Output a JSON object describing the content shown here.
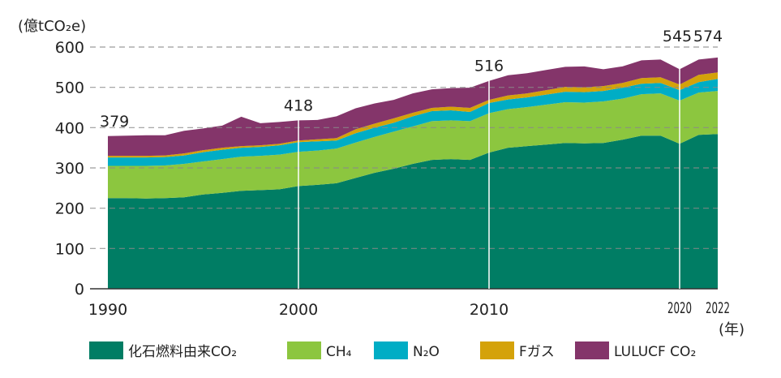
{
  "chart_data": {
    "type": "area",
    "stacked": true,
    "title": "",
    "ylabel": "(億tCO₂e)",
    "xlabel": "(年)",
    "ylim": [
      0,
      600
    ],
    "yticks": [
      0,
      100,
      200,
      300,
      400,
      500,
      600
    ],
    "xticks": [
      {
        "year": 1990,
        "label": "1990",
        "small": false
      },
      {
        "year": 2000,
        "label": "2000",
        "small": false
      },
      {
        "year": 2010,
        "label": "2010",
        "small": false
      },
      {
        "year": 2020,
        "label": "2020",
        "small": true
      },
      {
        "year": 2022,
        "label": "2022",
        "small": true
      }
    ],
    "grid": "horizontal dashed",
    "legend_position": "bottom",
    "x": [
      1990,
      1991,
      1992,
      1993,
      1994,
      1995,
      1996,
      1997,
      1998,
      1999,
      2000,
      2001,
      2002,
      2003,
      2004,
      2005,
      2006,
      2007,
      2008,
      2009,
      2010,
      2011,
      2012,
      2013,
      2014,
      2015,
      2016,
      2017,
      2018,
      2019,
      2020,
      2021,
      2022
    ],
    "series": [
      {
        "name": "化石燃料由来CO₂",
        "color": "#007d64",
        "values": [
          225,
          225,
          224,
          225,
          227,
          234,
          238,
          243,
          245,
          247,
          255,
          258,
          262,
          275,
          288,
          298,
          310,
          320,
          322,
          320,
          338,
          350,
          354,
          358,
          362,
          361,
          362,
          370,
          380,
          380,
          360,
          382,
          384
        ]
      },
      {
        "name": "CH₄",
        "color": "#8cc63f",
        "values": [
          80,
          80,
          81,
          81,
          83,
          82,
          84,
          85,
          85,
          86,
          85,
          85,
          86,
          88,
          89,
          92,
          93,
          96,
          96,
          96,
          98,
          96,
          97,
          99,
          101,
          101,
          103,
          102,
          103,
          105,
          107,
          105,
          107
        ]
      },
      {
        "name": "N₂O",
        "color": "#00adc5",
        "values": [
          21,
          21,
          21,
          21,
          21,
          23,
          23,
          22,
          22,
          23,
          24,
          23,
          20,
          23,
          23,
          22,
          25,
          25,
          25,
          23,
          25,
          24,
          24,
          25,
          26,
          26,
          26,
          27,
          26,
          26,
          26,
          26,
          30
        ]
      },
      {
        "name": "Fガス",
        "color": "#d4a20a",
        "values": [
          4,
          4,
          4,
          4,
          5,
          5,
          5,
          4,
          4,
          4,
          4,
          5,
          6,
          10,
          10,
          11,
          9,
          8,
          9,
          10,
          8,
          10,
          10,
          11,
          12,
          12,
          12,
          12,
          14,
          14,
          14,
          18,
          16
        ]
      },
      {
        "name": "LULUCF CO₂",
        "color": "#84356a",
        "values": [
          49,
          50,
          51,
          50,
          56,
          54,
          55,
          73,
          55,
          54,
          50,
          48,
          54,
          52,
          50,
          46,
          48,
          46,
          46,
          50,
          47,
          50,
          50,
          50,
          50,
          52,
          42,
          41,
          44,
          44,
          38,
          38,
          37
        ]
      }
    ],
    "annotations": [
      {
        "year": 1990,
        "text": "379",
        "marker_line": false
      },
      {
        "year": 2000,
        "text": "418",
        "marker_line": true
      },
      {
        "year": 2010,
        "text": "516",
        "marker_line": true
      },
      {
        "year": 2020,
        "text": "545",
        "marker_line": true
      },
      {
        "year": 2022,
        "text": "574",
        "marker_line": false
      }
    ]
  }
}
